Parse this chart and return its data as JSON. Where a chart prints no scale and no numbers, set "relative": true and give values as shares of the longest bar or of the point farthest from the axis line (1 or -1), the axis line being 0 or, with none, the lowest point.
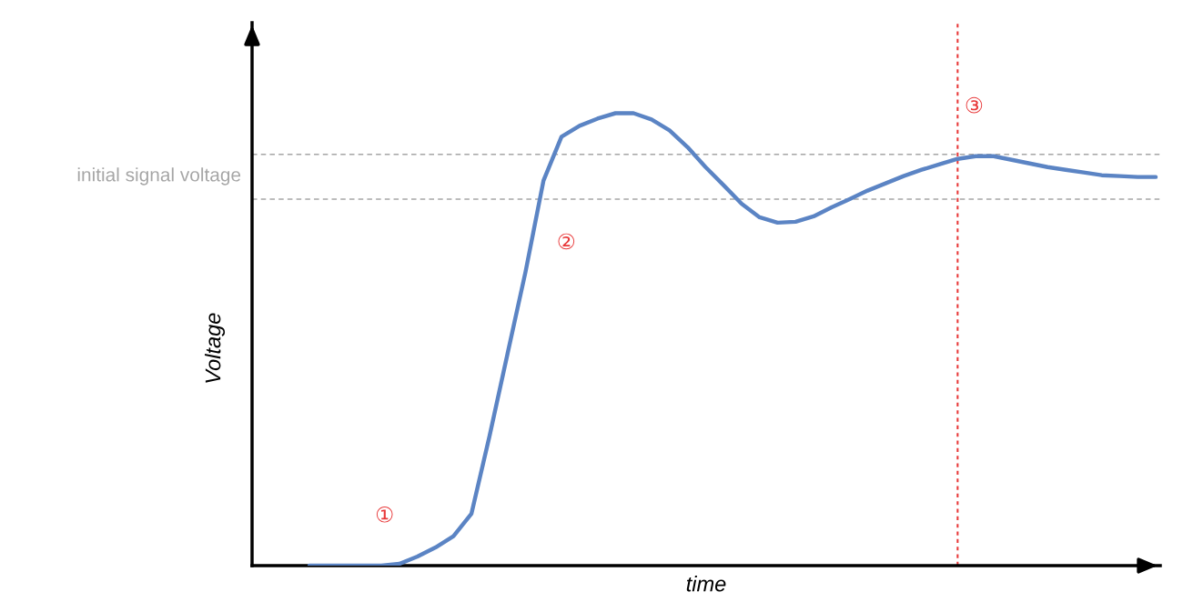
{
  "chart_data": {
    "type": "line",
    "relative": true,
    "xlabel": "time",
    "ylabel": "Voltage",
    "categories": [
      null,
      null,
      null,
      null,
      null,
      null,
      null,
      null,
      null,
      null,
      null,
      null,
      null,
      null,
      null,
      null,
      null,
      null,
      null,
      null,
      null,
      null,
      null,
      null,
      null,
      null,
      null,
      null,
      null,
      null,
      null,
      null,
      null,
      null,
      null,
      null,
      null,
      null,
      null,
      null,
      null,
      null,
      null,
      null,
      null,
      null,
      null,
      null
    ],
    "series": [
      {
        "color": "#5b84c4",
        "values": [
          0,
          0,
          0,
          0,
          0,
          0.004,
          0.02,
          0.04,
          0.065,
          0.115,
          0.286,
          0.468,
          0.649,
          0.851,
          0.948,
          0.972,
          0.988,
          1.0,
          1.0,
          0.986,
          0.962,
          0.925,
          0.881,
          0.841,
          0.8,
          0.77,
          0.758,
          0.76,
          0.772,
          0.792,
          0.81,
          0.829,
          0.845,
          0.861,
          0.875,
          0.887,
          0.899,
          0.905,
          0.905,
          0.897,
          0.889,
          0.881,
          0.875,
          0.869,
          0.863,
          0.861,
          0.859,
          0.859
        ]
      }
    ],
    "ref_lines": [
      {
        "axis": "y",
        "value": 0.909,
        "color": "#a6a6a6",
        "line_style": "dashed"
      },
      {
        "axis": "y",
        "value": 0.81,
        "color": "#a6a6a6",
        "line_style": "dashed"
      }
    ],
    "annotations": [
      "initial signal voltage",
      "①",
      "②",
      "③"
    ],
    "legend": false
  }
}
